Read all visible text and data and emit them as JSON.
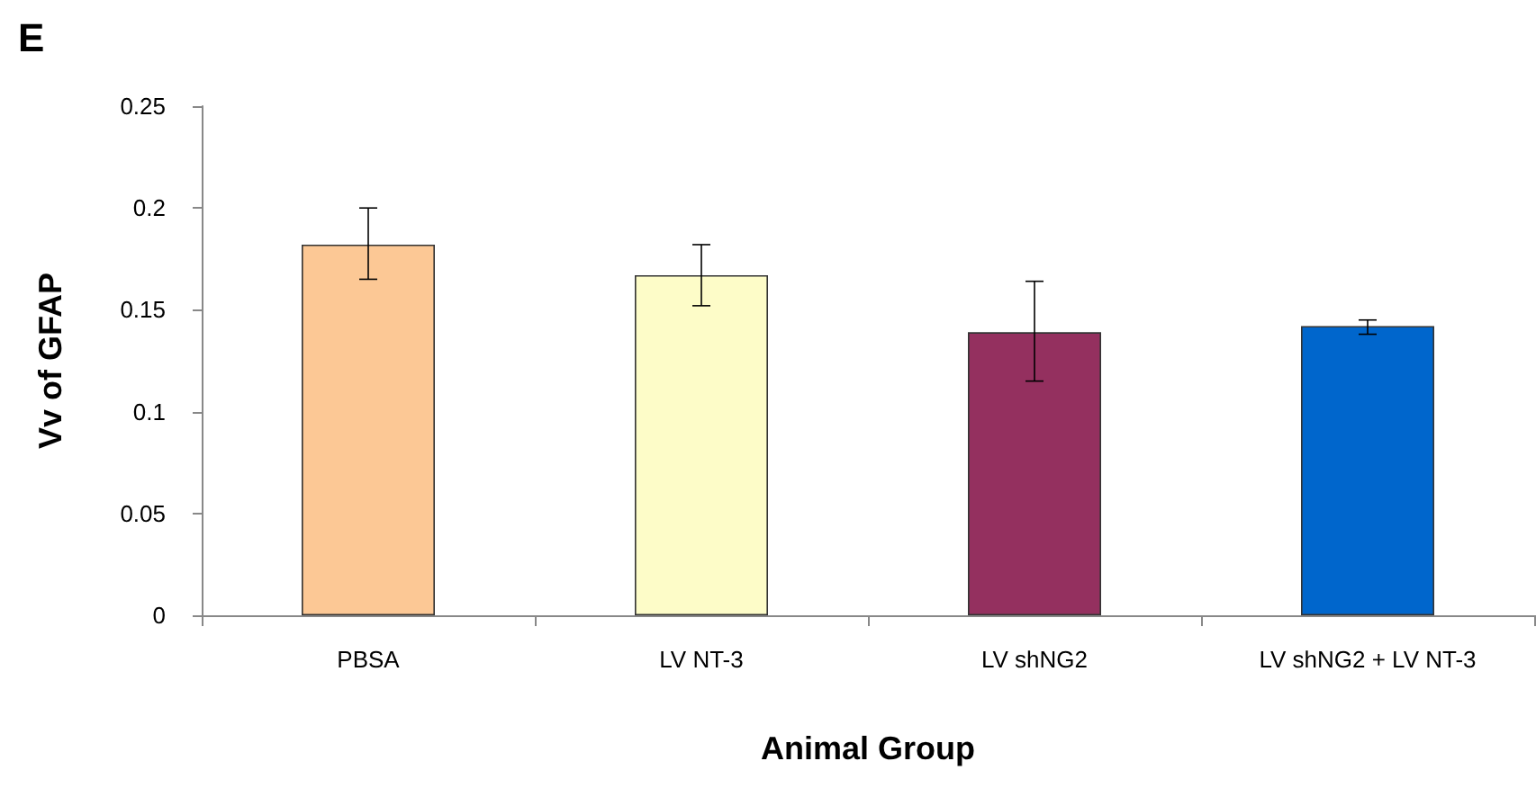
{
  "chart_data": {
    "type": "bar",
    "annotations": [
      "E"
    ],
    "xlabel": "Animal Group",
    "ylabel": "Vv of GFAP",
    "categories": [
      "PBSA",
      "LV NT-3",
      "LV shNG2",
      "LV shNG2 + LV NT-3"
    ],
    "values": [
      0.182,
      0.167,
      0.139,
      0.142
    ],
    "colors": [
      "#fcc895",
      "#fdfcc8",
      "#94305f",
      "#0066cc"
    ],
    "errors": [
      [
        0.165,
        0.2
      ],
      [
        0.152,
        0.182
      ],
      [
        0.115,
        0.164
      ],
      [
        0.138,
        0.145
      ]
    ],
    "ylim": [
      0,
      0.25
    ],
    "yticks": [
      0,
      0.05,
      0.1,
      0.15,
      0.2,
      0.25
    ],
    "grid": false
  }
}
